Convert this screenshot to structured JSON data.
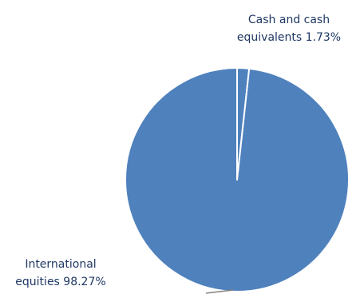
{
  "chart_data": {
    "type": "pie",
    "title": "",
    "slices": [
      {
        "label_line1": "Cash and cash",
        "label_line2": "equivalents 1.73%",
        "name": "Cash and cash equivalents",
        "value": 1.73,
        "color": "#4f81bd"
      },
      {
        "label_line1": "International",
        "label_line2": "equities 98.27%",
        "name": "International equities",
        "value": 98.27,
        "color": "#4f81bd"
      }
    ],
    "slice_border_color": "#ffffff",
    "leader_line_color": "#808080",
    "label_color": "#1f3864",
    "start_angle": "12 o'clock",
    "direction": "clockwise"
  }
}
